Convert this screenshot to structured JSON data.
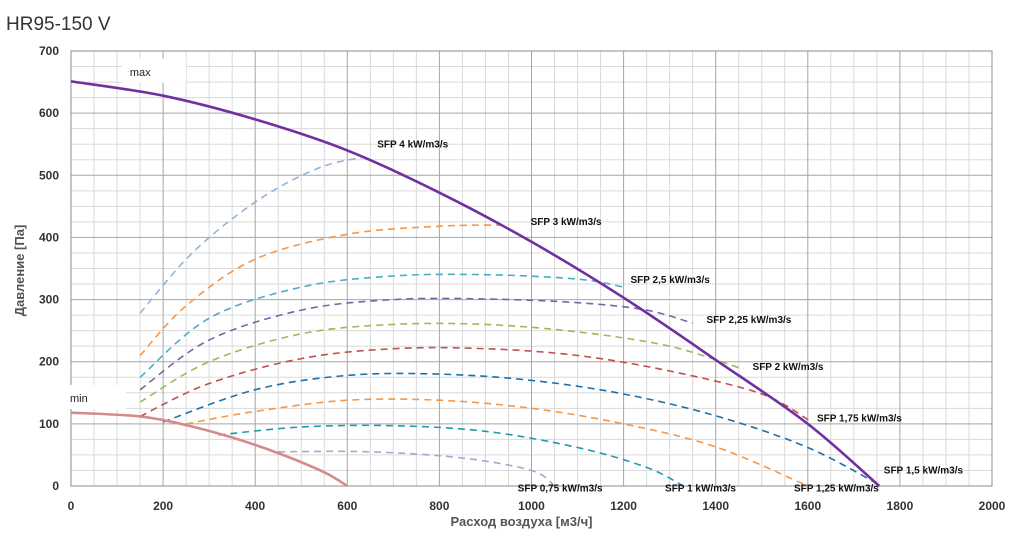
{
  "title": "HR95-150 V",
  "chart_data": {
    "type": "line",
    "title": "HR95-150 V",
    "xlabel": "Расход воздуха [м3/ч]",
    "ylabel": "Давление [Па]",
    "xlim": [
      0,
      2000
    ],
    "ylim": [
      0,
      700
    ],
    "x_ticks": [
      "0",
      "200",
      "400",
      "600",
      "800",
      "1000",
      "1200",
      "1400",
      "1600",
      "1800",
      "2000"
    ],
    "y_ticks": [
      "0",
      "100",
      "200",
      "300",
      "400",
      "500",
      "600",
      "700"
    ],
    "grid": true,
    "series": [
      {
        "name": "max",
        "style": "solid",
        "color": "#7030a0",
        "points": [
          [
            0,
            651
          ],
          [
            200,
            628
          ],
          [
            400,
            590
          ],
          [
            600,
            540
          ],
          [
            800,
            472
          ],
          [
            1000,
            393
          ],
          [
            1200,
            303
          ],
          [
            1400,
            203
          ],
          [
            1600,
            100
          ],
          [
            1755,
            0
          ]
        ]
      },
      {
        "name": "min",
        "style": "solid",
        "color": "#d48b8b",
        "points": [
          [
            0,
            118
          ],
          [
            150,
            112
          ],
          [
            250,
            98
          ],
          [
            350,
            78
          ],
          [
            450,
            53
          ],
          [
            550,
            22
          ],
          [
            600,
            0
          ]
        ]
      },
      {
        "name": "SFP 4 kW/m3/s",
        "style": "dashed",
        "color": "#95b3d7",
        "points": [
          [
            150,
            278
          ],
          [
            250,
            365
          ],
          [
            350,
            430
          ],
          [
            450,
            480
          ],
          [
            550,
            515
          ],
          [
            640,
            530
          ]
        ]
      },
      {
        "name": "SFP 3 kW/m3/s",
        "style": "dashed",
        "color": "#f79646",
        "points": [
          [
            150,
            210
          ],
          [
            250,
            290
          ],
          [
            400,
            365
          ],
          [
            600,
            405
          ],
          [
            800,
            418
          ],
          [
            950,
            420
          ]
        ]
      },
      {
        "name": "SFP 2,5 kW/m3/s",
        "style": "dashed",
        "color": "#4bacc6",
        "points": [
          [
            150,
            175
          ],
          [
            300,
            270
          ],
          [
            500,
            320
          ],
          [
            700,
            338
          ],
          [
            900,
            340
          ],
          [
            1100,
            333
          ],
          [
            1200,
            320
          ]
        ]
      },
      {
        "name": "SFP 2,25 kW/m3/s",
        "style": "dashed",
        "color": "#8064a2",
        "points": [
          [
            150,
            155
          ],
          [
            300,
            235
          ],
          [
            500,
            283
          ],
          [
            700,
            300
          ],
          [
            900,
            301
          ],
          [
            1100,
            295
          ],
          [
            1250,
            283
          ],
          [
            1350,
            262
          ]
        ]
      },
      {
        "name": "SFP 2 kW/m3/s",
        "style": "dashed",
        "color": "#9bbb59",
        "points": [
          [
            150,
            135
          ],
          [
            300,
            200
          ],
          [
            500,
            245
          ],
          [
            700,
            260
          ],
          [
            900,
            260
          ],
          [
            1100,
            248
          ],
          [
            1300,
            225
          ],
          [
            1460,
            188
          ]
        ]
      },
      {
        "name": "SFP 1,75 kW/m3/s",
        "style": "dashed",
        "color": "#c0504d",
        "points": [
          [
            150,
            112
          ],
          [
            300,
            165
          ],
          [
            500,
            205
          ],
          [
            700,
            221
          ],
          [
            900,
            221
          ],
          [
            1100,
            210
          ],
          [
            1300,
            185
          ],
          [
            1500,
            148
          ],
          [
            1610,
            102
          ]
        ]
      },
      {
        "name": "SFP 1,5 kW/m3/s",
        "style": "dashed",
        "color": "#1f6fa8",
        "points": [
          [
            200,
            103
          ],
          [
            400,
            155
          ],
          [
            600,
            178
          ],
          [
            800,
            180
          ],
          [
            1000,
            170
          ],
          [
            1200,
            148
          ],
          [
            1400,
            113
          ],
          [
            1600,
            62
          ],
          [
            1760,
            0
          ]
        ]
      },
      {
        "name": "SFP 1,25 kW/m3/s",
        "style": "dashed",
        "color": "#f79646",
        "points": [
          [
            250,
            100
          ],
          [
            400,
            120
          ],
          [
            600,
            138
          ],
          [
            800,
            138
          ],
          [
            1000,
            125
          ],
          [
            1200,
            100
          ],
          [
            1400,
            63
          ],
          [
            1600,
            0
          ]
        ]
      },
      {
        "name": "SFP 1 kW/m3/s",
        "style": "dashed",
        "color": "#1f9ab0",
        "points": [
          [
            320,
            82
          ],
          [
            500,
            95
          ],
          [
            700,
            97
          ],
          [
            900,
            88
          ],
          [
            1100,
            62
          ],
          [
            1250,
            30
          ],
          [
            1330,
            0
          ]
        ]
      },
      {
        "name": "SFP 0,75 kW/m3/s",
        "style": "dashed",
        "color": "#a6a6cf",
        "points": [
          [
            450,
            55
          ],
          [
            650,
            55
          ],
          [
            850,
            45
          ],
          [
            1000,
            25
          ],
          [
            1050,
            0
          ]
        ]
      }
    ],
    "annotations": [
      {
        "text": "max",
        "x": 180,
        "y": 665,
        "kind": "range"
      },
      {
        "text": "min",
        "x": 50,
        "y": 140,
        "kind": "range"
      },
      {
        "text": "SFP 4 kW/m3/s",
        "x": 665,
        "y": 545,
        "kind": "sfp"
      },
      {
        "text": "SFP 3 kW/m3/s",
        "x": 998,
        "y": 420,
        "kind": "sfp"
      },
      {
        "text": "SFP 2,5 kW/m3/s",
        "x": 1215,
        "y": 327,
        "kind": "sfp"
      },
      {
        "text": "SFP 2,25 kW/m3/s",
        "x": 1380,
        "y": 262,
        "kind": "sfp"
      },
      {
        "text": "SFP 2 kW/m3/s",
        "x": 1480,
        "y": 187,
        "kind": "sfp"
      },
      {
        "text": "SFP 1,75 kW/m3/s",
        "x": 1620,
        "y": 104,
        "kind": "sfp"
      },
      {
        "text": "SFP 1,5 kW/m3/s",
        "x": 1765,
        "y": 20,
        "kind": "sfp"
      },
      {
        "text": "SFP 0,75 kW/m3/s",
        "x": 970,
        "y": -9,
        "kind": "sfp"
      },
      {
        "text": "SFP 1 kW/m3/s",
        "x": 1290,
        "y": -9,
        "kind": "sfp"
      },
      {
        "text": "SFP 1,25 kW/m3/s",
        "x": 1570,
        "y": -9,
        "kind": "sfp"
      }
    ]
  }
}
